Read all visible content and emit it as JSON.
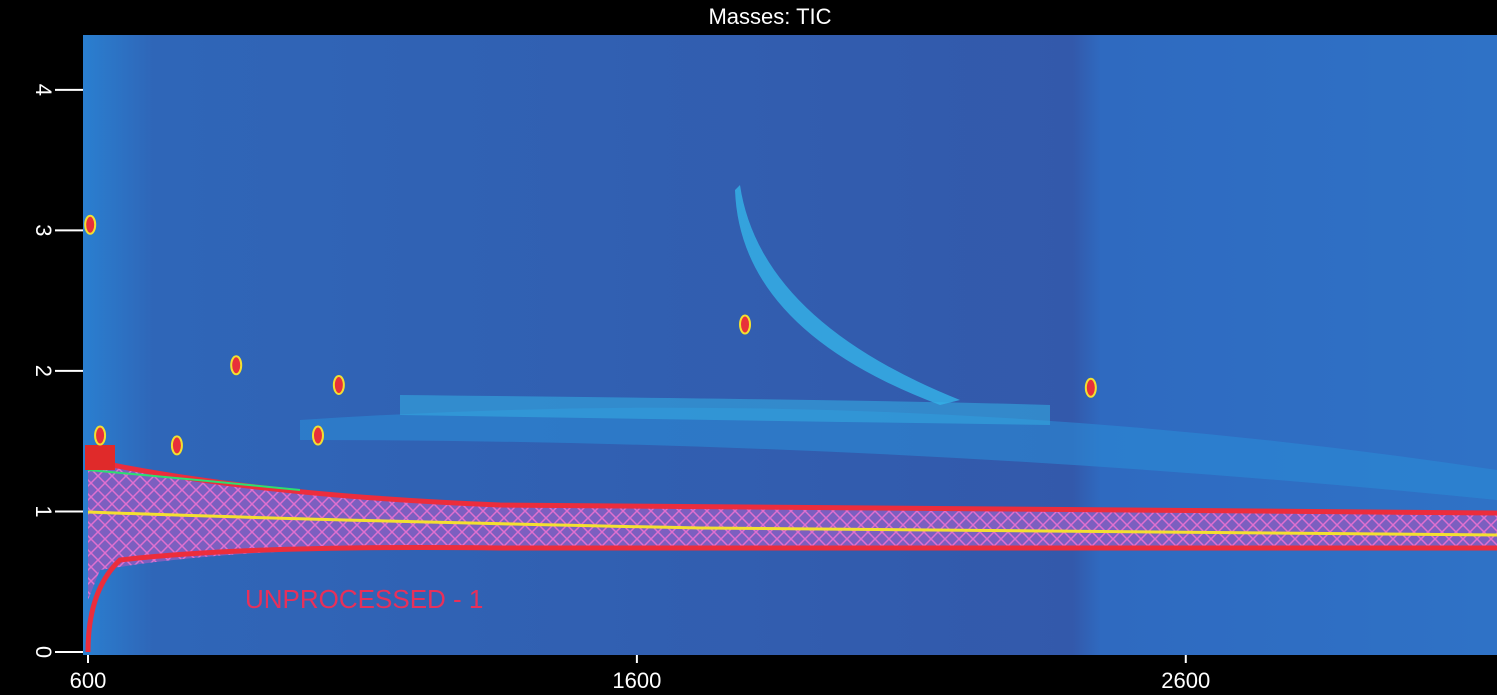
{
  "chart_data": {
    "type": "scatter",
    "title": "Masses: TIC",
    "annotation": "UNPROCESSED - 1",
    "xlim": [
      600,
      3167
    ],
    "xticks": [
      600,
      1600,
      2600
    ],
    "ylim": [
      0,
      4.39
    ],
    "yticks": [
      0,
      1,
      2,
      3,
      4
    ],
    "x": [
      1797,
      2427,
      1057,
      604,
      622,
      870,
      762,
      1019
    ],
    "y": [
      2.33,
      1.88,
      1.9,
      3.04,
      1.54,
      2.04,
      1.47,
      1.54
    ],
    "color": "#e8303a"
  }
}
